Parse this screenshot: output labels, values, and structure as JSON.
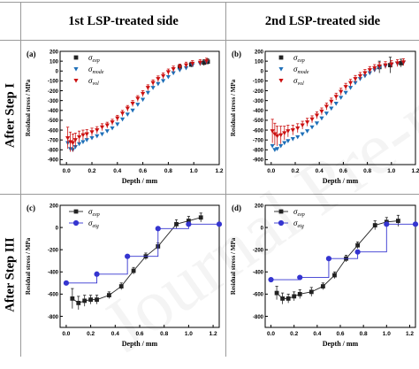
{
  "column_titles": [
    "1st LSP-treated side",
    "2nd LSP-treated side"
  ],
  "row_titles": [
    "After Step I",
    "After Step III"
  ],
  "watermark_text": "Journal Pre-proofs",
  "colors": {
    "exp": "#222222",
    "mode": "#1e6fb8",
    "vol": "#cc1111",
    "etg": "#3535d0"
  },
  "chart_data": [
    {
      "id": "a",
      "panel_label": "(a)",
      "type": "scatter",
      "xlabel": "Depth / mm",
      "ylabel": "Residual stress / MPa",
      "xlim": [
        -0.05,
        1.2
      ],
      "ylim": [
        -950,
        200
      ],
      "xticks": [
        "0.0",
        "0.2",
        "0.4",
        "0.6",
        "0.8",
        "1.0",
        "1.2"
      ],
      "yticks": [
        "-900",
        "-800",
        "-700",
        "-600",
        "-500",
        "-400",
        "-300",
        "-200",
        "-100",
        "0",
        "100",
        "200"
      ],
      "series": [
        {
          "name": "σexp",
          "legend_symbol": "σ",
          "legend_sub": "exp",
          "marker": "square",
          "x": [
            0.89,
            0.98,
            1.08,
            1.11
          ],
          "y": [
            40,
            65,
            85,
            95
          ],
          "err": [
            25,
            25,
            30,
            30
          ]
        },
        {
          "name": "σmode",
          "legend_symbol": "σ",
          "legend_sub": "mode",
          "marker": "triangle-down",
          "x": [
            0.01,
            0.03,
            0.05,
            0.07,
            0.1,
            0.13,
            0.16,
            0.2,
            0.24,
            0.28,
            0.32,
            0.36,
            0.4,
            0.44,
            0.48,
            0.52,
            0.56,
            0.6,
            0.64,
            0.68,
            0.72,
            0.76,
            0.8,
            0.84,
            0.89,
            0.94,
            0.99,
            1.05,
            1.1
          ],
          "y": [
            -730,
            -790,
            -800,
            -770,
            -740,
            -720,
            -700,
            -680,
            -660,
            -640,
            -610,
            -580,
            -540,
            -490,
            -440,
            -400,
            -340,
            -290,
            -220,
            -170,
            -130,
            -100,
            -60,
            -20,
            10,
            30,
            60,
            75,
            90
          ]
        },
        {
          "name": "σvol",
          "legend_symbol": "σ",
          "legend_sub": "vol",
          "marker": "triangle-down",
          "x": [
            0.01,
            0.03,
            0.05,
            0.07,
            0.1,
            0.13,
            0.16,
            0.2,
            0.24,
            0.28,
            0.32,
            0.36,
            0.4,
            0.44,
            0.48,
            0.52,
            0.56,
            0.6,
            0.64,
            0.68,
            0.72,
            0.76,
            0.8,
            0.84,
            0.89,
            0.94,
            0.99,
            1.05,
            1.1
          ],
          "y": [
            -680,
            -720,
            -730,
            -700,
            -670,
            -650,
            -640,
            -620,
            -600,
            -570,
            -550,
            -520,
            -480,
            -430,
            -380,
            -330,
            -280,
            -230,
            -170,
            -120,
            -80,
            -50,
            -10,
            20,
            40,
            60,
            75,
            85,
            100
          ],
          "err": [
            110,
            100,
            90,
            70,
            60,
            50,
            45,
            40,
            35,
            35,
            30,
            30,
            30,
            30,
            30,
            30,
            30,
            30,
            30,
            30,
            30,
            30,
            30,
            30,
            30,
            30,
            30,
            30,
            30
          ]
        }
      ]
    },
    {
      "id": "b",
      "panel_label": "(b)",
      "type": "scatter",
      "xlabel": "Depth / mm",
      "ylabel": "Residual stress / MPa",
      "xlim": [
        -0.05,
        1.2
      ],
      "ylim": [
        -950,
        200
      ],
      "xticks": [
        "0.0",
        "0.2",
        "0.4",
        "0.6",
        "0.8",
        "1.0",
        "1.2"
      ],
      "yticks": [
        "-900",
        "-800",
        "-700",
        "-600",
        "-500",
        "-400",
        "-300",
        "-200",
        "-100",
        "0",
        "100",
        "200"
      ],
      "series": [
        {
          "name": "σexp",
          "legend_symbol": "σ",
          "legend_sub": "exp",
          "marker": "square",
          "x": [
            0.9,
            0.99,
            1.08
          ],
          "y": [
            40,
            60,
            80
          ],
          "err": [
            60,
            80,
            40
          ]
        },
        {
          "name": "σmode",
          "legend_symbol": "σ",
          "legend_sub": "mode",
          "marker": "triangle-down",
          "x": [
            0.01,
            0.03,
            0.05,
            0.08,
            0.11,
            0.14,
            0.18,
            0.22,
            0.26,
            0.3,
            0.34,
            0.38,
            0.42,
            0.46,
            0.5,
            0.54,
            0.58,
            0.62,
            0.66,
            0.7,
            0.74,
            0.78,
            0.82,
            0.86,
            0.9,
            0.95,
            1.0,
            1.05,
            1.1
          ],
          "y": [
            -760,
            -800,
            -790,
            -760,
            -730,
            -710,
            -690,
            -670,
            -640,
            -610,
            -570,
            -530,
            -480,
            -430,
            -380,
            -330,
            -270,
            -220,
            -170,
            -120,
            -80,
            -50,
            -20,
            10,
            30,
            50,
            65,
            75,
            85
          ]
        },
        {
          "name": "σvol",
          "legend_symbol": "σ",
          "legend_sub": "vol",
          "marker": "triangle-down",
          "x": [
            0.01,
            0.03,
            0.05,
            0.08,
            0.11,
            0.14,
            0.18,
            0.22,
            0.26,
            0.3,
            0.34,
            0.38,
            0.42,
            0.46,
            0.5,
            0.54,
            0.58,
            0.62,
            0.66,
            0.7,
            0.74,
            0.78,
            0.82,
            0.86,
            0.9,
            0.95,
            1.0,
            1.05,
            1.1
          ],
          "y": [
            -610,
            -640,
            -660,
            -650,
            -630,
            -610,
            -600,
            -580,
            -550,
            -520,
            -490,
            -450,
            -410,
            -360,
            -310,
            -260,
            -210,
            -160,
            -120,
            -80,
            -50,
            -20,
            10,
            30,
            50,
            60,
            70,
            80,
            90
          ],
          "err": [
            120,
            110,
            100,
            90,
            70,
            60,
            50,
            45,
            40,
            40,
            35,
            35,
            35,
            35,
            35,
            35,
            35,
            35,
            35,
            35,
            35,
            35,
            35,
            35,
            35,
            35,
            35,
            35,
            35
          ]
        }
      ]
    },
    {
      "id": "c",
      "panel_label": "(c)",
      "type": "line",
      "xlabel": "Depth / mm",
      "ylabel": "Residual stress / MPa",
      "xlim": [
        -0.05,
        1.25
      ],
      "ylim": [
        -900,
        200
      ],
      "xticks": [
        "0.0",
        "0.2",
        "0.4",
        "0.6",
        "0.8",
        "1.0",
        "1.2"
      ],
      "yticks": [
        "-800",
        "-600",
        "-400",
        "-200",
        "0",
        "200"
      ],
      "series": [
        {
          "name": "σexp",
          "legend_symbol": "σ",
          "legend_sub": "exp",
          "marker": "square",
          "x": [
            0.05,
            0.1,
            0.15,
            0.2,
            0.25,
            0.35,
            0.45,
            0.55,
            0.65,
            0.75,
            0.9,
            1.0,
            1.1
          ],
          "y": [
            -640,
            -680,
            -660,
            -650,
            -650,
            -610,
            -530,
            -390,
            -260,
            -170,
            30,
            60,
            90
          ],
          "err": [
            90,
            60,
            50,
            40,
            40,
            30,
            30,
            30,
            30,
            30,
            40,
            40,
            40
          ]
        },
        {
          "name": "σetg",
          "legend_symbol": "σ",
          "legend_sub": "etg",
          "marker": "circle",
          "step": true,
          "x": [
            0.0,
            0.25,
            0.25,
            0.5,
            0.5,
            0.75,
            0.75,
            1.0,
            1.0,
            1.25
          ],
          "y": [
            -500,
            -500,
            -420,
            -420,
            -260,
            -260,
            -10,
            -10,
            30,
            30
          ]
        }
      ]
    },
    {
      "id": "d",
      "panel_label": "(d)",
      "type": "line",
      "xlabel": "Depth / mm",
      "ylabel": "Residual stress / MPa",
      "xlim": [
        -0.05,
        1.25
      ],
      "ylim": [
        -900,
        200
      ],
      "xticks": [
        "0.0",
        "0.2",
        "0.4",
        "0.6",
        "0.8",
        "1.0",
        "1.2"
      ],
      "yticks": [
        "-800",
        "-600",
        "-400",
        "-200",
        "0",
        "200"
      ],
      "series": [
        {
          "name": "σexp",
          "legend_symbol": "σ",
          "legend_sub": "exp",
          "marker": "square",
          "x": [
            0.05,
            0.1,
            0.15,
            0.2,
            0.25,
            0.35,
            0.45,
            0.55,
            0.65,
            0.75,
            0.9,
            1.0,
            1.1
          ],
          "y": [
            -590,
            -640,
            -640,
            -620,
            -600,
            -580,
            -530,
            -430,
            -280,
            -160,
            20,
            50,
            60
          ],
          "err": [
            60,
            50,
            40,
            40,
            40,
            40,
            30,
            30,
            30,
            30,
            40,
            40,
            50
          ]
        },
        {
          "name": "σetg",
          "legend_symbol": "σ",
          "legend_sub": "etg",
          "marker": "circle",
          "step": true,
          "x": [
            0.0,
            0.25,
            0.25,
            0.5,
            0.5,
            0.75,
            0.75,
            1.0,
            1.0,
            1.25
          ],
          "y": [
            -470,
            -470,
            -450,
            -450,
            -280,
            -280,
            -220,
            -220,
            30,
            30
          ]
        }
      ]
    }
  ]
}
